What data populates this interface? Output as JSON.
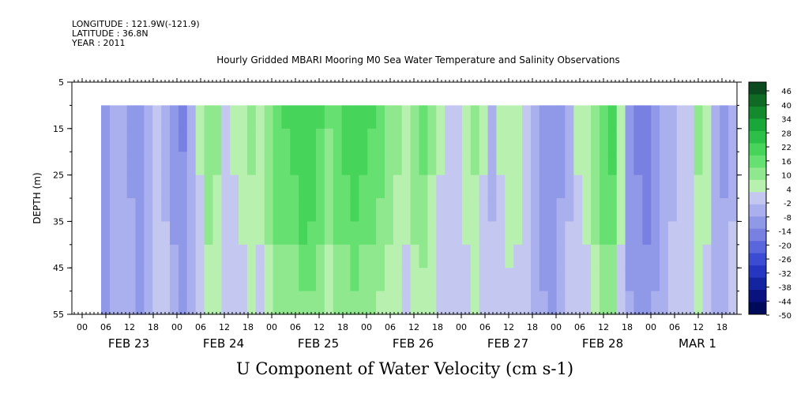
{
  "header": {
    "longitude": "LONGITUDE : 121.9W(-121.9)",
    "latitude": "LATITUDE : 36.8N",
    "year": "YEAR : 2011"
  },
  "chart_data": {
    "type": "heatmap",
    "title": "Hourly Gridded MBARI Mooring M0 Sea Water Temperature and Salinity Observations",
    "xlabel": "U Component of Water Velocity (cm s-1)",
    "ylabel": "DEPTH (m)",
    "ylim": [
      5,
      55
    ],
    "y_ticks": [
      5,
      15,
      25,
      35,
      45,
      55
    ],
    "y_reversed": true,
    "x_hour_ticks": [
      "00",
      "06",
      "12",
      "18",
      "00",
      "06",
      "12",
      "18",
      "00",
      "06",
      "12",
      "18",
      "00",
      "06",
      "12",
      "18",
      "00",
      "06",
      "12",
      "18",
      "00",
      "06",
      "12",
      "18",
      "00",
      "06",
      "12",
      "18"
    ],
    "x_date_labels": [
      "FEB 23",
      "FEB 24",
      "FEB 25",
      "FEB 26",
      "FEB 27",
      "FEB 28",
      "MAR  1"
    ],
    "data_depth_range": [
      10,
      55
    ],
    "colorbar": {
      "ticks": [
        "46",
        "40",
        "34",
        "28",
        "22",
        "16",
        "10",
        "4",
        "-2",
        "-8",
        "-14",
        "-20",
        "-26",
        "-32",
        "-38",
        "-44",
        "-50"
      ],
      "colors": [
        "#0a4a1e",
        "#0f6a24",
        "#138a2e",
        "#18a83a",
        "#2cc048",
        "#46d45a",
        "#66e070",
        "#8fe88e",
        "#b8f0b0",
        "#c4c8f0",
        "#aab0ee",
        "#9098e8",
        "#7880e2",
        "#5a66dc",
        "#3c4cd2",
        "#2636c0",
        "#1424a0",
        "#0a1280",
        "#000a5a"
      ]
    },
    "u_velocity_columns_cm_s": [
      -12,
      -6,
      -3,
      -8,
      -12,
      -4,
      2,
      -2,
      -9,
      -13,
      -6,
      4,
      12,
      10,
      3,
      4,
      8,
      10,
      7,
      12,
      18,
      20,
      22,
      25,
      24,
      20,
      15,
      18,
      22,
      24,
      22,
      20,
      17,
      14,
      10,
      8,
      12,
      16,
      10,
      4,
      0,
      2,
      6,
      10,
      4,
      -2,
      4,
      9,
      8,
      2,
      -6,
      -10,
      -12,
      -8,
      -2,
      4,
      8,
      14,
      18,
      22,
      8,
      -10,
      -14,
      -16,
      -10,
      -4,
      -2,
      2,
      2,
      10,
      6,
      -4,
      -8,
      -2
    ]
  }
}
